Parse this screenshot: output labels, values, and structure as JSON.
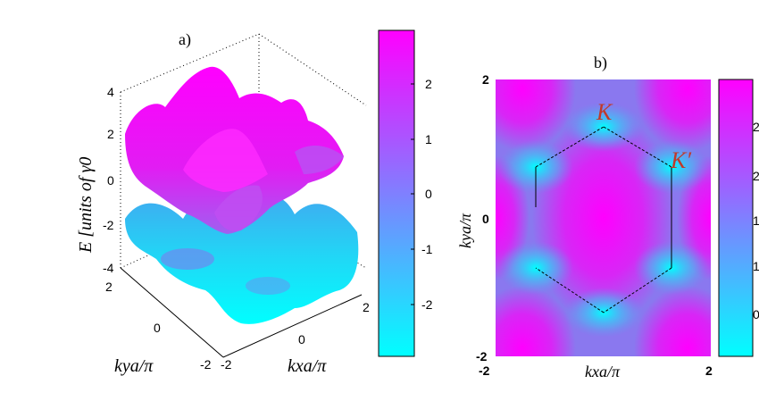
{
  "panel_a": {
    "label": "a)",
    "z_ticks": [
      "4",
      "2",
      "0",
      "-2",
      "-4"
    ],
    "ky_ticks": [
      "2",
      "0",
      "-2"
    ],
    "kx_ticks": [
      "-2",
      "0",
      "2"
    ],
    "z_label": "E [units of γ0",
    "kx_label": "kxa/π",
    "ky_label": "kya/π",
    "colorbar_ticks": [
      "2",
      "1",
      "0",
      "-1",
      "-2"
    ]
  },
  "panel_b": {
    "label": "b)",
    "y_ticks": [
      "2",
      "0",
      "-2"
    ],
    "x_ticks": [
      "-2",
      "2"
    ],
    "x_label": "kxa/π",
    "y_label": "kya/π",
    "point_K": "K",
    "point_Kp": "K′",
    "colorbar_ticks": [
      "2",
      "2",
      "1",
      "1",
      "0"
    ]
  },
  "colors": {
    "high": "#ff00ff",
    "low": "#00ffff",
    "marker": "#c0392b"
  },
  "chart_data": [
    {
      "type": "surface",
      "title": "a)",
      "zlabel": "E [units of γ0",
      "xlabel": "kxa/π",
      "ylabel": "kya/π",
      "xlim": [
        -2,
        2
      ],
      "ylim": [
        -2,
        2
      ],
      "zlim": [
        -4,
        4
      ],
      "colormap": [
        "#00ffff",
        "#ff00ff"
      ],
      "colorbar_range": [
        -3,
        3
      ]
    },
    {
      "type": "heatmap",
      "title": "b)",
      "xlabel": "kxa/π",
      "ylabel": "kya/π",
      "xlim": [
        -2,
        2
      ],
      "ylim": [
        -2,
        2
      ],
      "colormap": [
        "#00ffff",
        "#ff00ff"
      ],
      "annotations": [
        "K",
        "K′"
      ]
    }
  ]
}
